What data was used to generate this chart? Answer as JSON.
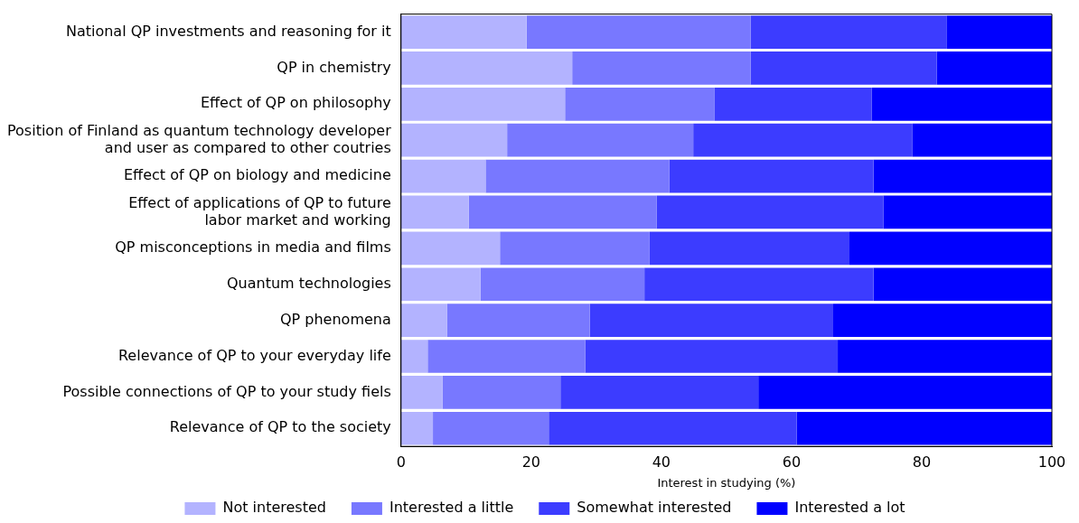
{
  "chart_data": {
    "type": "bar",
    "orientation": "horizontal",
    "stacked": true,
    "xlabel": "Interest in studying (%)",
    "categories": [
      "National QP investments and reasoning for it",
      "QP in chemistry",
      "Effect of QP on philosophy",
      "Position of Finland as quantum technology developer\nand user as compared to other coutries",
      "Effect of QP on biology and medicine",
      "Effect of applications of QP to future\nlabor market and working",
      "QP misconceptions in media and films",
      "Quantum technologies",
      "QP phenomena",
      "Relevance of QP to your everyday life",
      "Possible connections of QP to your study fiels",
      "Relevance of QP to the society"
    ],
    "series": [
      {
        "name": "Not interested",
        "color": "#b3b3ff",
        "values": [
          19.3,
          26.3,
          25.2,
          16.3,
          13.0,
          10.4,
          15.2,
          12.2,
          7.1,
          4.1,
          6.4,
          4.9
        ]
      },
      {
        "name": "Interested a little",
        "color": "#7878ff",
        "values": [
          34.4,
          27.4,
          23.0,
          28.6,
          28.2,
          28.9,
          23.0,
          25.2,
          21.9,
          24.2,
          18.1,
          17.8
        ]
      },
      {
        "name": "Somewhat interested",
        "color": "#3c3cff",
        "values": [
          30.1,
          28.6,
          24.1,
          33.7,
          31.4,
          34.8,
          30.7,
          35.2,
          37.4,
          38.8,
          30.4,
          38.1
        ]
      },
      {
        "name": "Interested a lot",
        "color": "#0000ff",
        "values": [
          16.2,
          17.7,
          27.7,
          21.4,
          27.4,
          25.9,
          31.1,
          27.4,
          33.6,
          32.9,
          45.1,
          39.2
        ]
      }
    ],
    "xlim": [
      0,
      100
    ],
    "xticks": [
      0,
      20,
      40,
      60,
      80,
      100
    ],
    "grid": false,
    "legend": "bottom"
  }
}
